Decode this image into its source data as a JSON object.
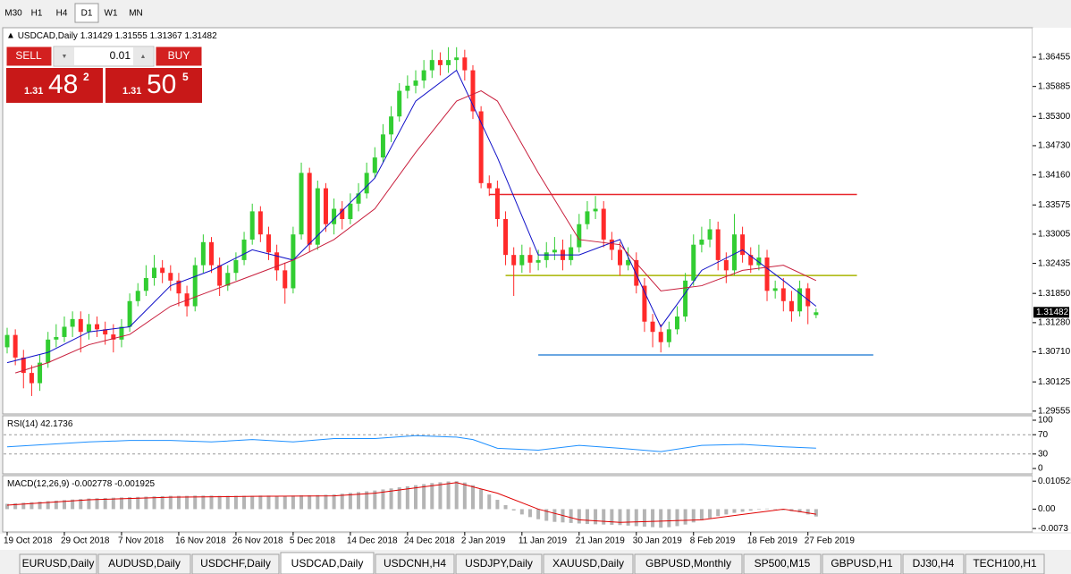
{
  "toolbar": {
    "timeframes": [
      "M30",
      "H1",
      "H4",
      "D1",
      "W1",
      "MN"
    ],
    "active": "D1"
  },
  "trade_panel": {
    "sell_label": "SELL",
    "buy_label": "BUY",
    "lot": "0.01",
    "sell": {
      "prefix": "1.31",
      "big": "48",
      "small": "2"
    },
    "buy": {
      "prefix": "1.31",
      "big": "50",
      "small": "5"
    }
  },
  "tabs": {
    "items": [
      "EURUSD,Daily",
      "AUDUSD,Daily",
      "USDCHF,Daily",
      "USDCAD,Daily",
      "USDCNH,H4",
      "USDJPY,Daily",
      "XAUUSD,Daily",
      "GBPUSD,Monthly",
      "SP500,M15",
      "GBPUSD,H1",
      "DJ30,H4",
      "TECH100,H1"
    ],
    "active": "USDCAD,Daily"
  },
  "chart_data": {
    "type": "candlestick",
    "symbol": "USDCAD,Daily",
    "up_color": "#32cd32",
    "down_color": "#ff2a2a",
    "ylim": [
      1.295,
      1.3703
    ],
    "yticks": [
      1.36455,
      1.35885,
      {
        "value": 1.353,
        "label": "1.35300"
      },
      {
        "value": 1.3473,
        "label": "1.34730"
      },
      {
        "value": 1.3416,
        "label": "1.34160"
      },
      1.33575,
      1.33005,
      1.32435,
      {
        "value": 1.3185,
        "label": "1.31850"
      },
      {
        "value": 1.3128,
        "label": "1.31280"
      },
      {
        "value": 1.3071,
        "label": "1.30710"
      },
      1.30125,
      1.29555
    ],
    "categories": [
      "19 Oct 2018",
      null,
      null,
      null,
      null,
      null,
      null,
      "29 Oct 2018",
      null,
      null,
      null,
      null,
      null,
      null,
      "7 Nov 2018",
      null,
      null,
      null,
      null,
      null,
      null,
      "16 Nov 2018",
      null,
      null,
      null,
      null,
      null,
      null,
      "26 Nov 2018",
      null,
      null,
      null,
      null,
      null,
      null,
      "5 Dec 2018",
      null,
      null,
      null,
      null,
      null,
      null,
      "14 Dec 2018",
      null,
      null,
      null,
      null,
      null,
      null,
      "24 Dec 2018",
      null,
      null,
      null,
      null,
      null,
      null,
      "2 Jan 2019",
      null,
      null,
      null,
      null,
      null,
      null,
      "11 Jan 2019",
      null,
      null,
      null,
      null,
      null,
      null,
      "21 Jan 2019",
      null,
      null,
      null,
      null,
      null,
      null,
      "30 Jan 2019",
      null,
      null,
      null,
      null,
      null,
      null,
      "8 Feb 2019",
      null,
      null,
      null,
      null,
      null,
      null,
      "18 Feb 2019",
      null,
      null,
      null,
      null,
      null,
      null,
      "27 Feb 2019",
      null
    ],
    "open": [
      1.308,
      1.3104,
      1.306,
      1.303,
      1.301,
      1.305,
      1.3095,
      1.31,
      1.312,
      1.3135,
      1.311,
      1.3125,
      1.3115,
      1.3105,
      1.3095,
      1.312,
      1.317,
      1.319,
      1.3215,
      1.3235,
      1.3225,
      1.321,
      1.3185,
      1.316,
      1.324,
      1.3285,
      1.324,
      1.32,
      1.3225,
      1.325,
      1.329,
      1.3345,
      1.33,
      1.3265,
      1.323,
      1.3195,
      1.33,
      1.342,
      1.328,
      1.339,
      1.332,
      1.335,
      1.333,
      1.336,
      1.338,
      1.342,
      1.345,
      1.3495,
      1.353,
      1.358,
      1.359,
      1.36,
      1.362,
      1.364,
      1.363,
      1.364,
      1.3645,
      1.362,
      1.354,
      1.34,
      1.339,
      1.333,
      1.326,
      1.324,
      1.326,
      1.3245,
      1.325,
      1.3265,
      1.327,
      1.325,
      1.3275,
      1.332,
      1.3345,
      1.335,
      1.329,
      1.327,
      1.324,
      1.325,
      1.32,
      1.313,
      1.311,
      1.309,
      1.3115,
      1.314,
      1.321,
      1.328,
      1.329,
      1.331,
      1.325,
      1.323,
      1.33,
      1.326,
      1.324,
      1.3255,
      1.319,
      1.3195,
      1.317,
      1.315,
      1.3195,
      1.31429
    ],
    "high": [
      1.3118,
      1.3115,
      1.3075,
      1.3045,
      1.3065,
      1.311,
      1.3125,
      1.314,
      1.315,
      1.315,
      1.3145,
      1.314,
      1.313,
      1.3125,
      1.3135,
      1.3185,
      1.3205,
      1.324,
      1.326,
      1.325,
      1.324,
      1.3225,
      1.32,
      1.3255,
      1.33,
      1.3295,
      1.3255,
      1.324,
      1.3265,
      1.3305,
      1.336,
      1.3355,
      1.3315,
      1.328,
      1.3245,
      1.3315,
      1.344,
      1.343,
      1.3405,
      1.34,
      1.337,
      1.3365,
      1.338,
      1.34,
      1.344,
      1.347,
      1.3515,
      1.355,
      1.3595,
      1.361,
      1.362,
      1.364,
      1.366,
      1.3655,
      1.3665,
      1.3665,
      1.366,
      1.363,
      1.355,
      1.3415,
      1.3405,
      1.3345,
      1.3275,
      1.328,
      1.3275,
      1.327,
      1.3285,
      1.3295,
      1.329,
      1.33,
      1.334,
      1.3365,
      1.3375,
      1.3365,
      1.3305,
      1.3285,
      1.3275,
      1.3265,
      1.3215,
      1.3145,
      1.3125,
      1.313,
      1.316,
      1.3225,
      1.33,
      1.3315,
      1.333,
      1.3325,
      1.3265,
      1.334,
      1.3315,
      1.3275,
      1.328,
      1.327,
      1.321,
      1.3215,
      1.319,
      1.321,
      1.3205,
      1.31555
    ],
    "low": [
      1.3068,
      1.3045,
      1.3,
      1.2985,
      1.2995,
      1.304,
      1.308,
      1.309,
      1.31,
      1.307,
      1.3095,
      1.31,
      1.3085,
      1.307,
      1.308,
      1.311,
      1.316,
      1.318,
      1.32,
      1.3205,
      1.319,
      1.316,
      1.314,
      1.315,
      1.3225,
      1.3225,
      1.318,
      1.319,
      1.321,
      1.324,
      1.328,
      1.3285,
      1.325,
      1.321,
      1.3165,
      1.3185,
      1.329,
      1.3265,
      1.327,
      1.3305,
      1.33,
      1.331,
      1.332,
      1.3345,
      1.337,
      1.341,
      1.344,
      1.348,
      1.352,
      1.3565,
      1.3575,
      1.3585,
      1.3605,
      1.361,
      1.3615,
      1.362,
      1.36,
      1.3525,
      1.339,
      1.3375,
      1.3315,
      1.324,
      1.318,
      1.3225,
      1.3225,
      1.323,
      1.3235,
      1.325,
      1.323,
      1.324,
      1.3265,
      1.331,
      1.333,
      1.3275,
      1.325,
      1.322,
      1.323,
      1.3185,
      1.311,
      1.308,
      1.307,
      1.308,
      1.3105,
      1.313,
      1.32,
      1.3265,
      1.3275,
      1.323,
      1.3205,
      1.322,
      1.3245,
      1.3225,
      1.323,
      1.317,
      1.3175,
      1.315,
      1.313,
      1.314,
      1.3125,
      1.31367
    ],
    "close": [
      1.3104,
      1.306,
      1.303,
      1.301,
      1.305,
      1.3095,
      1.31,
      1.312,
      1.3135,
      1.311,
      1.3125,
      1.3115,
      1.3105,
      1.3095,
      1.312,
      1.317,
      1.319,
      1.3215,
      1.3235,
      1.3225,
      1.321,
      1.3185,
      1.316,
      1.324,
      1.3285,
      1.324,
      1.32,
      1.3225,
      1.325,
      1.329,
      1.3345,
      1.33,
      1.3265,
      1.323,
      1.3195,
      1.33,
      1.342,
      1.328,
      1.339,
      1.332,
      1.335,
      1.333,
      1.336,
      1.338,
      1.342,
      1.345,
      1.3495,
      1.353,
      1.358,
      1.359,
      1.36,
      1.362,
      1.364,
      1.363,
      1.364,
      1.3645,
      1.362,
      1.354,
      1.34,
      1.339,
      1.333,
      1.326,
      1.324,
      1.326,
      1.3245,
      1.325,
      1.3265,
      1.327,
      1.325,
      1.3275,
      1.332,
      1.3345,
      1.335,
      1.329,
      1.327,
      1.324,
      1.325,
      1.32,
      1.313,
      1.311,
      1.309,
      1.3115,
      1.314,
      1.321,
      1.328,
      1.329,
      1.331,
      1.325,
      1.323,
      1.33,
      1.326,
      1.324,
      1.3255,
      1.319,
      1.3195,
      1.317,
      1.315,
      1.3195,
      1.316,
      1.31482
    ],
    "lines": [
      {
        "color": "#1010c8",
        "x": [
          0,
          5,
          10,
          15,
          20,
          25,
          30,
          35,
          40,
          45,
          50,
          55,
          60,
          65,
          70,
          75,
          80,
          85,
          90,
          95,
          99
        ],
        "values": [
          1.305,
          1.307,
          1.311,
          1.312,
          1.32,
          1.323,
          1.327,
          1.325,
          1.333,
          1.341,
          1.356,
          1.362,
          1.345,
          1.326,
          1.326,
          1.329,
          1.312,
          1.323,
          1.327,
          1.321,
          1.316
        ]
      },
      {
        "color": "#c81e3c",
        "x": [
          1,
          5,
          10,
          15,
          20,
          25,
          30,
          35,
          40,
          45,
          50,
          55,
          58,
          60,
          65,
          70,
          75,
          80,
          85,
          90,
          95,
          99
        ],
        "values": [
          1.303,
          1.305,
          1.3085,
          1.3105,
          1.316,
          1.319,
          1.322,
          1.325,
          1.329,
          1.335,
          1.346,
          1.356,
          1.358,
          1.356,
          1.342,
          1.329,
          1.328,
          1.319,
          1.32,
          1.323,
          1.324,
          1.321
        ]
      }
    ],
    "levels": [
      {
        "value": 1.3378,
        "color": "#e8262b",
        "from": 59,
        "to": 104
      },
      {
        "value": 1.322,
        "color": "#a8b400",
        "from": 61,
        "to": 104
      },
      {
        "value": 1.3065,
        "color": "#3a8ad8",
        "from": 65,
        "to": 106
      }
    ],
    "rsi": {
      "label": "RSI(14)",
      "current": 42.1736,
      "color": "#1e90ff",
      "ylim": [
        0,
        100
      ],
      "yticks": [
        100,
        70,
        30,
        0
      ],
      "levels": [
        70,
        30
      ],
      "x": [
        0,
        5,
        10,
        15,
        20,
        25,
        30,
        35,
        40,
        45,
        50,
        55,
        57,
        60,
        65,
        70,
        75,
        80,
        85,
        90,
        95,
        99
      ],
      "values": [
        45,
        50,
        55,
        58,
        58,
        55,
        60,
        55,
        62,
        62,
        68,
        65,
        60,
        42,
        38,
        48,
        42,
        35,
        48,
        50,
        45,
        42.1736
      ]
    },
    "macd": {
      "label": "MACD(12,26,9)",
      "hist_color": "#b4b4b4",
      "signal_color": "#e00000",
      "ylim": [
        -0.0086,
        0.0126
      ],
      "yticks": [
        0.010525,
        {
          "value": 0,
          "label": "0.00"
        },
        -0.0073
      ],
      "histogram": [
        0.002,
        0.0022,
        0.0024,
        0.0026,
        0.0028,
        0.003,
        0.0032,
        0.0034,
        0.0036,
        0.0038,
        0.004,
        0.0041,
        0.0042,
        0.0043,
        0.0044,
        0.0045,
        0.0046,
        0.0047,
        0.0048,
        0.0049,
        0.005,
        0.005,
        0.005,
        0.0051,
        0.0051,
        0.0051,
        0.005,
        0.005,
        0.005,
        0.005,
        0.005,
        0.0051,
        0.0051,
        0.005,
        0.005,
        0.0051,
        0.0052,
        0.0052,
        0.0053,
        0.0054,
        0.0055,
        0.0058,
        0.0061,
        0.0064,
        0.0067,
        0.007,
        0.0074,
        0.0078,
        0.0082,
        0.0086,
        0.009,
        0.0094,
        0.0098,
        0.0101,
        0.0104,
        0.0105,
        0.01,
        0.009,
        0.0075,
        0.0055,
        0.0035,
        0.0015,
        -0.0005,
        -0.002,
        -0.003,
        -0.0038,
        -0.0044,
        -0.0048,
        -0.005,
        -0.0052,
        -0.0054,
        -0.0056,
        -0.0057,
        -0.0058,
        -0.0059,
        -0.006,
        -0.0062,
        -0.0064,
        -0.0066,
        -0.0068,
        -0.007,
        -0.0068,
        -0.0064,
        -0.0058,
        -0.005,
        -0.0042,
        -0.0034,
        -0.0026,
        -0.002,
        -0.0014,
        -0.001,
        -0.0006,
        -0.0002,
        0.0002,
        0,
        -0.0004,
        -0.0008,
        -0.0012,
        -0.002,
        -0.002778
      ],
      "signal_x": [
        0,
        10,
        20,
        30,
        40,
        45,
        50,
        55,
        60,
        65,
        70,
        75,
        80,
        85,
        90,
        95,
        99
      ],
      "signal": [
        0.0015,
        0.0035,
        0.0045,
        0.0048,
        0.005,
        0.006,
        0.008,
        0.01,
        0.006,
        0,
        -0.004,
        -0.005,
        -0.0045,
        -0.004,
        -0.002,
        0,
        -0.001925
      ]
    }
  }
}
